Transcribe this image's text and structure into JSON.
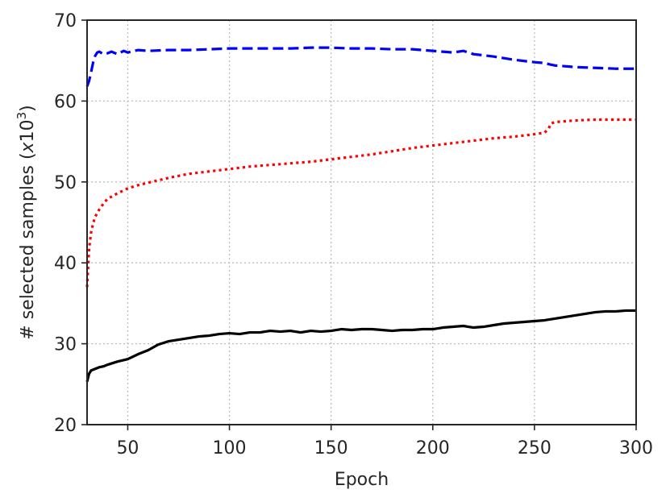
{
  "chart_data": {
    "type": "line",
    "title": "",
    "xlabel": "Epoch",
    "ylabel_prefix": "# selected samples (",
    "ylabel_x": "x",
    "ylabel_base": "10",
    "ylabel_exp": "3",
    "ylabel_suffix": ")",
    "xlim": [
      30,
      300
    ],
    "ylim": [
      20,
      70
    ],
    "xticks": [
      50,
      100,
      150,
      200,
      250,
      300
    ],
    "yticks": [
      20,
      30,
      40,
      50,
      60,
      70
    ],
    "grid": true,
    "series": [
      {
        "color": "#0000ff",
        "dash": "dashed",
        "x": [
          30,
          31,
          32,
          33,
          34,
          35,
          36,
          38,
          40,
          42,
          45,
          48,
          50,
          55,
          60,
          70,
          80,
          90,
          100,
          110,
          120,
          130,
          140,
          150,
          160,
          170,
          180,
          190,
          200,
          210,
          215,
          220,
          230,
          240,
          250,
          255,
          258,
          260,
          270,
          280,
          290,
          300
        ],
        "y": [
          61.8,
          62.5,
          63.6,
          64.8,
          65.6,
          66.0,
          66.1,
          65.8,
          65.9,
          66.1,
          65.8,
          66.2,
          66.0,
          66.3,
          66.2,
          66.3,
          66.3,
          66.4,
          66.5,
          66.5,
          66.5,
          66.5,
          66.6,
          66.6,
          66.5,
          66.5,
          66.4,
          66.4,
          66.2,
          66.0,
          66.2,
          65.8,
          65.5,
          65.1,
          64.8,
          64.7,
          64.5,
          64.4,
          64.2,
          64.1,
          64.0,
          64.0
        ]
      },
      {
        "color": "#ff0000",
        "dash": "dotted",
        "x": [
          30,
          30.5,
          31,
          32,
          33,
          34,
          36,
          38,
          40,
          45,
          50,
          55,
          60,
          70,
          80,
          90,
          100,
          110,
          120,
          130,
          140,
          150,
          160,
          170,
          180,
          190,
          200,
          210,
          220,
          230,
          240,
          250,
          255,
          257,
          258,
          260,
          265,
          270,
          280,
          290,
          300
        ],
        "y": [
          37.0,
          39.5,
          41.8,
          43.8,
          44.9,
          45.7,
          46.6,
          47.3,
          47.9,
          48.6,
          49.2,
          49.6,
          49.9,
          50.5,
          51.0,
          51.3,
          51.6,
          51.9,
          52.1,
          52.3,
          52.5,
          52.8,
          53.1,
          53.4,
          53.8,
          54.2,
          54.5,
          54.8,
          55.1,
          55.4,
          55.6,
          55.9,
          56.1,
          56.6,
          57.2,
          57.4,
          57.5,
          57.6,
          57.7,
          57.7,
          57.7
        ]
      },
      {
        "color": "#000000",
        "dash": "solid",
        "x": [
          30,
          31,
          32,
          34,
          36,
          38,
          40,
          45,
          50,
          55,
          60,
          65,
          70,
          75,
          80,
          85,
          90,
          95,
          100,
          105,
          110,
          115,
          120,
          125,
          130,
          135,
          140,
          145,
          150,
          155,
          160,
          165,
          170,
          175,
          180,
          185,
          190,
          195,
          200,
          205,
          210,
          215,
          220,
          225,
          230,
          235,
          240,
          245,
          250,
          255,
          260,
          265,
          270,
          275,
          280,
          285,
          290,
          295,
          300
        ],
        "y": [
          25.3,
          26.3,
          26.7,
          26.9,
          27.1,
          27.2,
          27.4,
          27.8,
          28.1,
          28.7,
          29.2,
          29.9,
          30.3,
          30.5,
          30.7,
          30.9,
          31.0,
          31.2,
          31.3,
          31.2,
          31.4,
          31.4,
          31.6,
          31.5,
          31.6,
          31.4,
          31.6,
          31.5,
          31.6,
          31.8,
          31.7,
          31.8,
          31.8,
          31.7,
          31.6,
          31.7,
          31.7,
          31.8,
          31.8,
          32.0,
          32.1,
          32.2,
          32.0,
          32.1,
          32.3,
          32.5,
          32.6,
          32.7,
          32.8,
          32.9,
          33.1,
          33.3,
          33.5,
          33.7,
          33.9,
          34.0,
          34.0,
          34.1,
          34.1
        ]
      }
    ]
  }
}
